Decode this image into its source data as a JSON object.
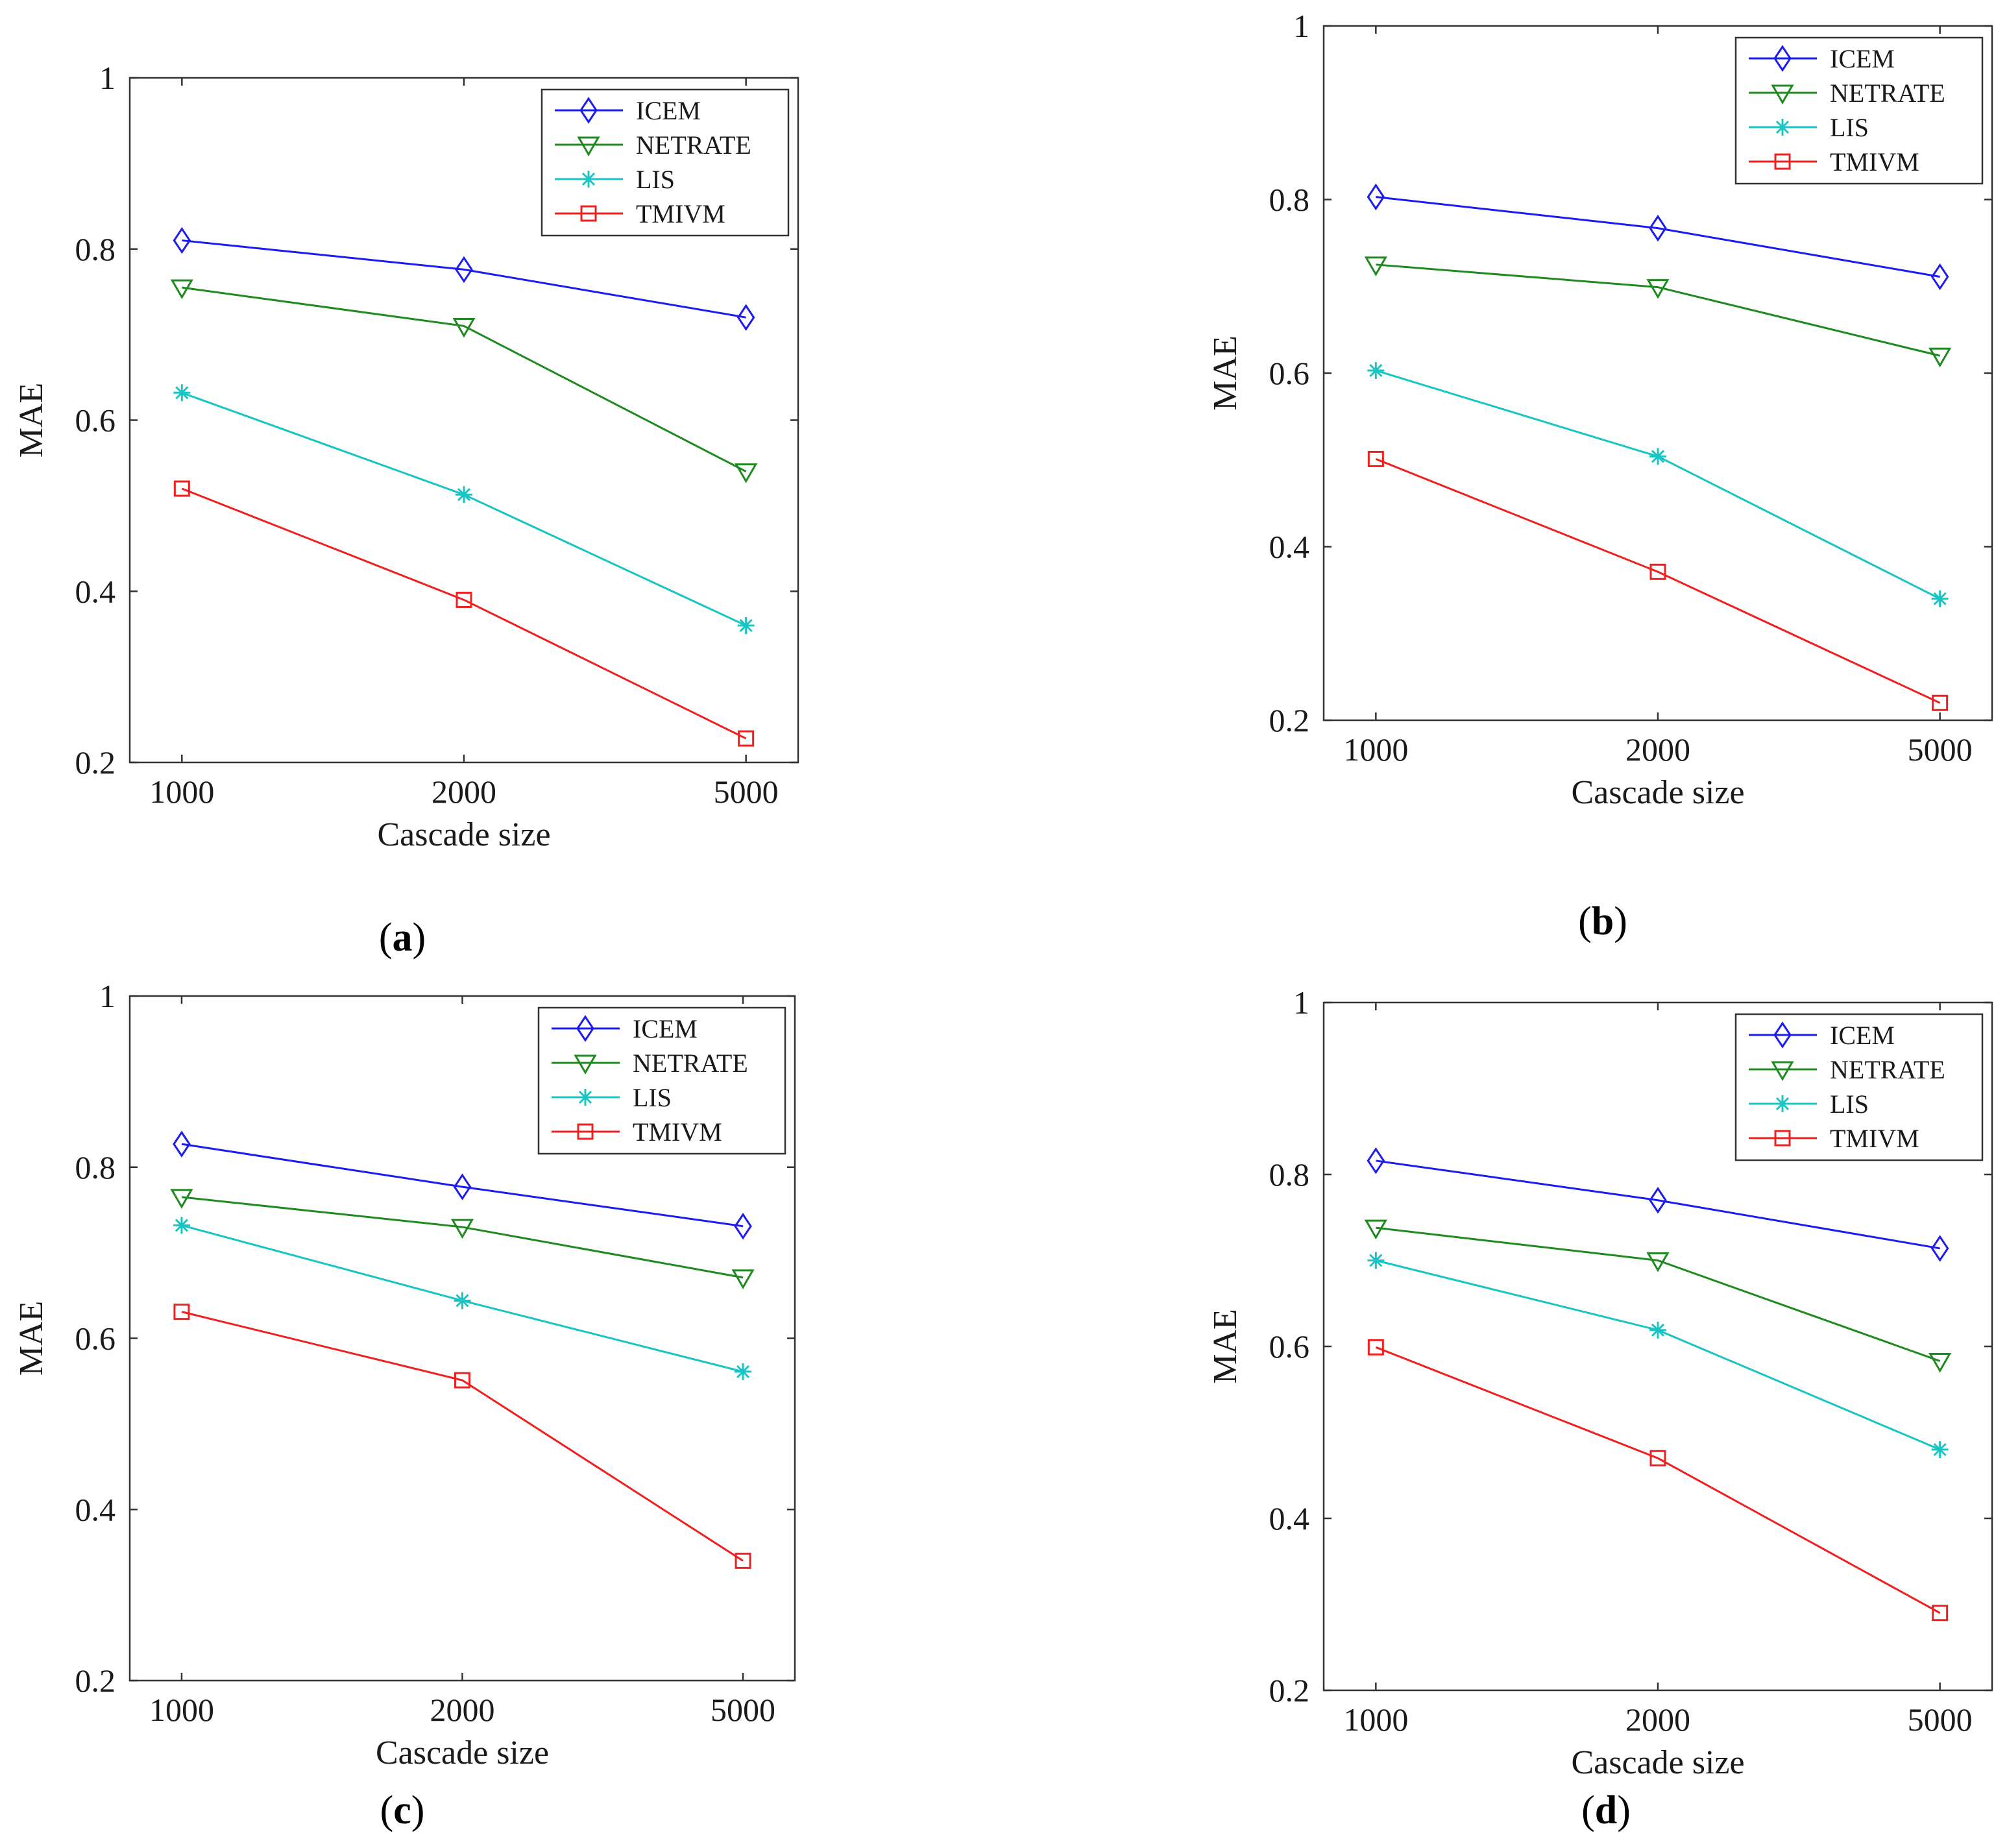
{
  "colors": {
    "ICEM": "#1c1cf0",
    "NETRATE": "#1f8a1f",
    "LIS": "#19c4c4",
    "TMIVM": "#f02020"
  },
  "chart_data": [
    {
      "type": "line",
      "panel_label": "a",
      "xlabel": "Cascade size",
      "ylabel": "MAE",
      "categories": [
        "1000",
        "2000",
        "5000"
      ],
      "ylim": [
        0.2,
        1
      ],
      "yticks": [
        "0.2",
        "0.4",
        "0.6",
        "0.8",
        "1"
      ],
      "legend_position": "top-right",
      "series": [
        {
          "name": "ICEM",
          "marker": "diamond",
          "values": [
            0.81,
            0.776,
            0.72
          ]
        },
        {
          "name": "NETRATE",
          "marker": "triangle-down",
          "values": [
            0.755,
            0.71,
            0.54
          ]
        },
        {
          "name": "LIS",
          "marker": "asterisk",
          "values": [
            0.632,
            0.513,
            0.36
          ]
        },
        {
          "name": "TMIVM",
          "marker": "square",
          "values": [
            0.52,
            0.39,
            0.228
          ]
        }
      ]
    },
    {
      "type": "line",
      "panel_label": "b",
      "xlabel": "Cascade size",
      "ylabel": "MAE",
      "categories": [
        "1000",
        "2000",
        "5000"
      ],
      "ylim": [
        0.2,
        1
      ],
      "yticks": [
        "0.2",
        "0.4",
        "0.6",
        "0.8",
        "1"
      ],
      "legend_position": "top-right",
      "series": [
        {
          "name": "ICEM",
          "marker": "diamond",
          "values": [
            0.803,
            0.767,
            0.711
          ]
        },
        {
          "name": "NETRATE",
          "marker": "triangle-down",
          "values": [
            0.725,
            0.699,
            0.62
          ]
        },
        {
          "name": "LIS",
          "marker": "asterisk",
          "values": [
            0.603,
            0.504,
            0.34
          ]
        },
        {
          "name": "TMIVM",
          "marker": "square",
          "values": [
            0.501,
            0.371,
            0.22
          ]
        }
      ]
    },
    {
      "type": "line",
      "panel_label": "c",
      "xlabel": "Cascade size",
      "ylabel": "MAE",
      "categories": [
        "1000",
        "2000",
        "5000"
      ],
      "ylim": [
        0.2,
        1
      ],
      "yticks": [
        "0.2",
        "0.4",
        "0.6",
        "0.8",
        "1"
      ],
      "legend_position": "top-right",
      "series": [
        {
          "name": "ICEM",
          "marker": "diamond",
          "values": [
            0.827,
            0.777,
            0.731
          ]
        },
        {
          "name": "NETRATE",
          "marker": "triangle-down",
          "values": [
            0.765,
            0.73,
            0.671
          ]
        },
        {
          "name": "LIS",
          "marker": "asterisk",
          "values": [
            0.732,
            0.644,
            0.561
          ]
        },
        {
          "name": "TMIVM",
          "marker": "square",
          "values": [
            0.631,
            0.551,
            0.34
          ]
        }
      ]
    },
    {
      "type": "line",
      "panel_label": "d",
      "xlabel": "Cascade size",
      "ylabel": "MAE",
      "categories": [
        "1000",
        "2000",
        "5000"
      ],
      "ylim": [
        0.2,
        1
      ],
      "yticks": [
        "0.2",
        "0.4",
        "0.6",
        "0.8",
        "1"
      ],
      "legend_position": "top-right",
      "series": [
        {
          "name": "ICEM",
          "marker": "diamond",
          "values": [
            0.816,
            0.77,
            0.714
          ]
        },
        {
          "name": "NETRATE",
          "marker": "triangle-down",
          "values": [
            0.738,
            0.7,
            0.583
          ]
        },
        {
          "name": "LIS",
          "marker": "asterisk",
          "values": [
            0.7,
            0.619,
            0.48
          ]
        },
        {
          "name": "TMIVM",
          "marker": "square",
          "values": [
            0.599,
            0.47,
            0.29
          ]
        }
      ]
    }
  ]
}
